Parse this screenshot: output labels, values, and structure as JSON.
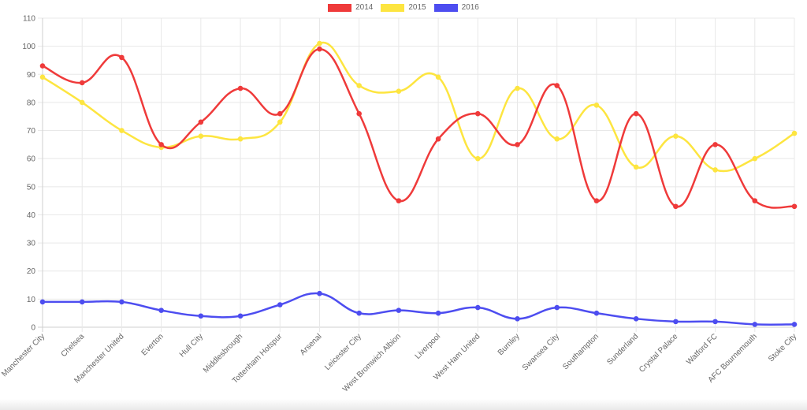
{
  "chart_data": {
    "type": "line",
    "title": "",
    "xlabel": "",
    "ylabel": "",
    "ylim": [
      0,
      110
    ],
    "ytick_step": 10,
    "grid": true,
    "legend_position": "top-center",
    "categories": [
      "Manchester City",
      "Chelsea",
      "Manchester United",
      "Everton",
      "Hull City",
      "Middlesbrough",
      "Tottenham Hotspur",
      "Arsenal",
      "Leicester City",
      "West Bromwich Albion",
      "Liverpool",
      "West Ham United",
      "Burnley",
      "Swansea City",
      "Southampton",
      "Sunderland",
      "Crystal Palace",
      "Watford FC",
      "AFC Bournemouth",
      "Stoke City"
    ],
    "series": [
      {
        "name": "2014",
        "color": "#ef3a3a",
        "values": [
          93,
          87,
          96,
          65,
          73,
          85,
          76,
          99,
          76,
          45,
          67,
          76,
          65,
          86,
          45,
          76,
          43,
          65,
          45,
          43
        ]
      },
      {
        "name": "2015",
        "color": "#fde540",
        "values": [
          89,
          80,
          70,
          64,
          68,
          67,
          73,
          101,
          86,
          84,
          89,
          60,
          85,
          67,
          79,
          57,
          68,
          56,
          60,
          69
        ]
      },
      {
        "name": "2016",
        "color": "#4d4df0",
        "values": [
          9,
          9,
          9,
          6,
          4,
          4,
          8,
          12,
          5,
          6,
          5,
          7,
          3,
          7,
          5,
          3,
          2,
          2,
          1,
          1
        ]
      }
    ]
  }
}
